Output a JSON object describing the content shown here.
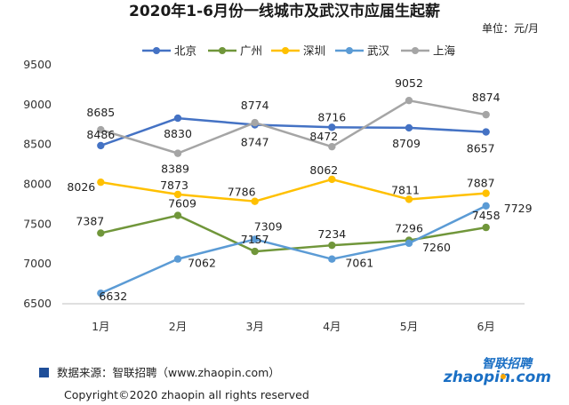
{
  "chart_data": {
    "type": "line",
    "title": "2020年1-6月份一线城市及武汉市应届生起薪",
    "unit_label": "单位：元/月",
    "categories": [
      "1月",
      "2月",
      "3月",
      "4月",
      "5月",
      "6月"
    ],
    "ylim": [
      6500,
      9500
    ],
    "yticks": [
      6500,
      7000,
      7500,
      8000,
      8500,
      9000,
      9500
    ],
    "grid": false,
    "legend_position": "top",
    "series": [
      {
        "name": "北京",
        "color": "#4472c4",
        "values": [
          8486,
          8830,
          8747,
          8716,
          8709,
          8657
        ]
      },
      {
        "name": "广州",
        "color": "#70963a",
        "values": [
          7387,
          7609,
          7157,
          7234,
          7296,
          7458
        ]
      },
      {
        "name": "深圳",
        "color": "#ffc000",
        "values": [
          8026,
          7873,
          7786,
          8062,
          7811,
          7887
        ]
      },
      {
        "name": "武汉",
        "color": "#5b9bd5",
        "values": [
          6632,
          7062,
          7309,
          7061,
          7260,
          7729
        ]
      },
      {
        "name": "上海",
        "color": "#a5a5a5",
        "values": [
          8685,
          8389,
          8774,
          8472,
          9052,
          8874
        ]
      }
    ]
  },
  "footer": {
    "source_text": "数据来源：智联招聘（www.zhaopin.com）",
    "copyright_text": "Copyright©2020  zhaopin all rights reserved",
    "marker_color": "#1f4e99"
  },
  "logo": {
    "text_cn": "智联招聘",
    "text_en": "zhaopin.com",
    "color": "#1a6fc4",
    "accent": "#f7a600"
  }
}
